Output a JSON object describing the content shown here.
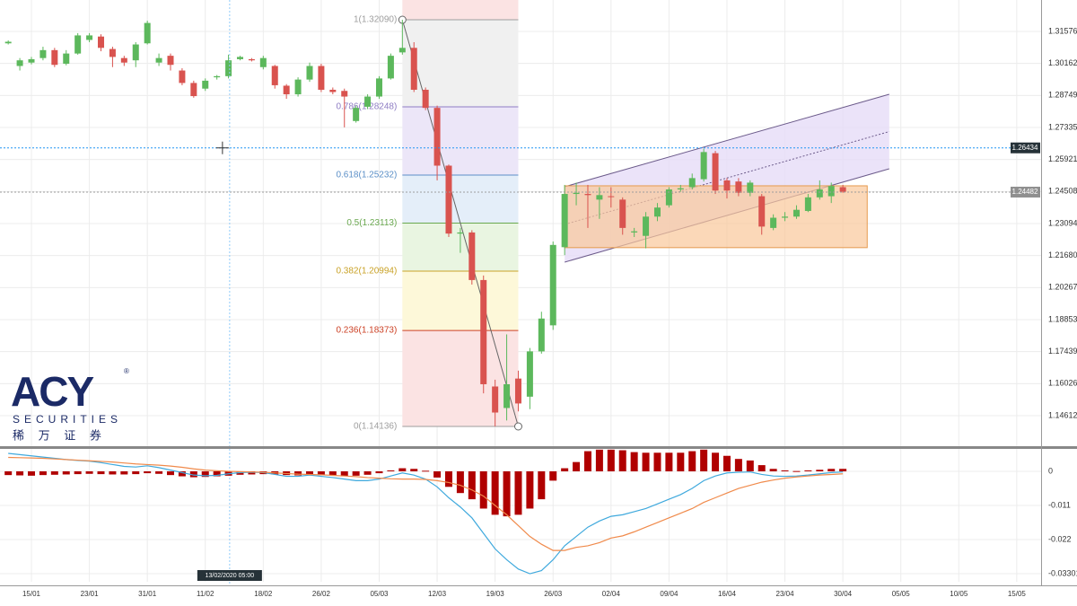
{
  "chart_data": [
    {
      "type": "candlestick",
      "open": [
        1.3105,
        1.3005,
        1.302,
        1.304,
        1.3075,
        1.3015,
        1.306,
        1.312,
        1.3135,
        1.308,
        1.304,
        1.303,
        1.3105,
        1.302,
        1.305,
        1.2985,
        1.293,
        1.2905,
        1.2955,
        1.296,
        1.3035,
        1.3035,
        1.3,
        1.3005,
        1.2918,
        1.288,
        1.2945,
        1.3005,
        1.29,
        1.2895,
        1.2762,
        1.2825,
        1.287,
        1.295,
        1.3065,
        1.3085,
        1.29,
        1.282,
        1.2565,
        1.2265,
        1.227,
        1.206,
        1.159,
        1.1495,
        1.1625,
        1.1545,
        1.1745,
        1.186,
        1.2205,
        1.244,
        1.244,
        1.2415,
        1.243,
        1.2415,
        1.227,
        1.2255,
        1.234,
        1.239,
        1.246,
        1.247,
        1.2505,
        1.262,
        1.25,
        1.2495,
        1.2445,
        1.243,
        1.229,
        1.2335,
        1.234,
        1.2365,
        1.2425,
        1.243,
        1.247
      ],
      "high": [
        1.3118,
        1.304,
        1.3045,
        1.309,
        1.3085,
        1.3075,
        1.315,
        1.315,
        1.3145,
        1.309,
        1.305,
        1.311,
        1.3205,
        1.306,
        1.306,
        1.2995,
        1.294,
        1.295,
        1.2965,
        1.3055,
        1.305,
        1.304,
        1.305,
        1.301,
        1.2925,
        1.2955,
        1.302,
        1.3015,
        1.291,
        1.2905,
        1.283,
        1.288,
        1.296,
        1.306,
        1.3209,
        1.311,
        1.291,
        1.283,
        1.257,
        1.229,
        1.228,
        1.208,
        1.162,
        1.182,
        1.166,
        1.176,
        1.192,
        1.223,
        1.248,
        1.249,
        1.248,
        1.247,
        1.247,
        1.2425,
        1.229,
        1.236,
        1.24,
        1.247,
        1.248,
        1.253,
        1.264,
        1.263,
        1.251,
        1.251,
        1.25,
        1.244,
        1.235,
        1.236,
        1.239,
        1.244,
        1.25,
        1.249,
        1.248
      ],
      "low": [
        1.31,
        1.2985,
        1.3012,
        1.303,
        1.3,
        1.3008,
        1.3055,
        1.311,
        1.307,
        1.3,
        1.3005,
        1.3,
        1.31,
        1.3005,
        1.2985,
        1.292,
        1.2865,
        1.2895,
        1.2945,
        1.295,
        1.303,
        1.3025,
        1.299,
        1.2905,
        1.286,
        1.287,
        1.2935,
        1.289,
        1.288,
        1.2734,
        1.2755,
        1.2815,
        1.286,
        1.2945,
        1.3055,
        1.289,
        1.281,
        1.25,
        1.225,
        1.218,
        1.204,
        1.156,
        1.1414,
        1.144,
        1.148,
        1.149,
        1.1735,
        1.184,
        1.217,
        1.239,
        1.229,
        1.233,
        1.238,
        1.226,
        1.225,
        1.22,
        1.232,
        1.238,
        1.245,
        1.246,
        1.2495,
        1.244,
        1.242,
        1.243,
        1.243,
        1.226,
        1.228,
        1.232,
        1.233,
        1.236,
        1.2415,
        1.24,
        1.2445
      ],
      "close": [
        1.3112,
        1.303,
        1.3035,
        1.3075,
        1.301,
        1.306,
        1.314,
        1.314,
        1.3085,
        1.3045,
        1.302,
        1.31,
        1.3195,
        1.304,
        1.301,
        1.293,
        1.2872,
        1.294,
        1.296,
        1.303,
        1.3045,
        1.303,
        1.304,
        1.292,
        1.288,
        1.2945,
        1.3005,
        1.29,
        1.289,
        1.287,
        1.282,
        1.287,
        1.295,
        1.305,
        1.3085,
        1.29,
        1.282,
        1.2565,
        1.2265,
        1.227,
        1.206,
        1.16,
        1.1475,
        1.16,
        1.1515,
        1.1745,
        1.189,
        1.2215,
        1.244,
        1.2445,
        1.2435,
        1.2435,
        1.2428,
        1.229,
        1.2275,
        1.234,
        1.238,
        1.246,
        1.2465,
        1.251,
        1.2625,
        1.2455,
        1.2455,
        1.2445,
        1.249,
        1.2296,
        1.2335,
        1.234,
        1.237,
        1.2425,
        1.246,
        1.2475,
        1.245
      ],
      "up_color": "#5cb85c",
      "down_color": "#d9534f",
      "xlim": [
        -0.71,
        89.1
      ],
      "ylim": [
        1.13264,
        1.32963
      ],
      "yticks": [
        1.31576,
        1.30162,
        1.28749,
        1.27335,
        1.25921,
        1.24508,
        1.23094,
        {
          "value": 1.2168,
          "label": "1.21680"
        },
        1.20267,
        1.18853,
        1.17439,
        1.16026,
        1.14612
      ],
      "grid": true,
      "fibonacci": {
        "x": [
          34,
          44
        ],
        "top_fill": "#fbe3e3",
        "levels": [
          {
            "value": 1.3209,
            "label": "1(1.32090)",
            "color": "#9e9e9e",
            "fill": "#f0f0f0"
          },
          {
            "value": 1.28248,
            "label": "0.786(1.28248)",
            "color": "#8e7cc3",
            "fill": "#ece6f8"
          },
          {
            "value": 1.25232,
            "label": "0.618(1.25232)",
            "color": "#5b8fc7",
            "fill": "#e4eef9"
          },
          {
            "value": 1.23113,
            "label": "0.5(1.23113)",
            "color": "#6aa84f",
            "fill": "#e9f5e1"
          },
          {
            "value": 1.20994,
            "label": "0.382(1.20994)",
            "color": "#c9a227",
            "fill": "#fdf8d9"
          },
          {
            "value": 1.18373,
            "label": "0.236(1.18373)",
            "color": "#cc4125",
            "fill": "#fbe3e3"
          },
          {
            "value": 1.14136,
            "label": "0(1.14136)",
            "color": "#9e9e9e",
            "fill": "#fbe3e3"
          }
        ]
      },
      "channel": {
        "x": [
          48,
          76
        ],
        "lower": [
          1.2139,
          1.2551
        ],
        "upper": [
          1.2472,
          1.288
        ],
        "fill": "#e6dcf7",
        "color": "#6b5a8a"
      },
      "rectangle": {
        "x": [
          48,
          74.1
        ],
        "y": [
          1.2203,
          1.2476
        ],
        "fill": "#f9c89a",
        "color": "#e59a4e"
      },
      "price_lines": [
        {
          "value": 1.26434,
          "color": "#2196f3",
          "box": "#263238"
        },
        {
          "value": 1.24482,
          "color": "#9e9e9e",
          "box": "#8f8f8f"
        }
      ],
      "crosshair": {
        "x": 19.1,
        "y": 1.26434,
        "label": "13/02/2020  05:00"
      },
      "logo": {
        "name": "ACY",
        "mark": "®",
        "tagline": "SECURITIES",
        "chinese": "稀 万 证 券"
      }
    },
    {
      "type": "macd",
      "histogram": [
        -0.0012,
        -0.0013,
        -0.0014,
        -0.0012,
        -0.0011,
        -0.001,
        -0.0009,
        -0.0008,
        -0.0009,
        -0.001,
        -0.001,
        -0.0009,
        -0.0006,
        -0.0008,
        -0.0012,
        -0.0016,
        -0.0019,
        -0.0018,
        -0.0016,
        -0.0014,
        -0.0011,
        -0.001,
        -0.0009,
        -0.001,
        -0.0012,
        -0.0013,
        -0.0011,
        -0.0012,
        -0.0013,
        -0.0015,
        -0.0014,
        -0.0011,
        -0.0006,
        0.0003,
        0.001,
        0.0008,
        0.0002,
        -0.002,
        -0.005,
        -0.007,
        -0.009,
        -0.012,
        -0.014,
        -0.0145,
        -0.014,
        -0.012,
        -0.009,
        -0.003,
        0.001,
        0.003,
        0.0065,
        0.007,
        0.007,
        0.0068,
        0.0062,
        0.006,
        0.006,
        0.006,
        0.006,
        0.0065,
        0.007,
        0.006,
        0.005,
        0.004,
        0.0035,
        0.002,
        0.0008,
        0.0003,
        0.0001,
        0.0003,
        0.0005,
        0.0008,
        0.0008
      ],
      "histogram_color": "#b00000",
      "macd": [
        0.0058,
        0.0054,
        0.005,
        0.0046,
        0.0042,
        0.0038,
        0.0035,
        0.0033,
        0.0028,
        0.0022,
        0.0016,
        0.0014,
        0.0018,
        0.0012,
        0.0004,
        -0.0004,
        -0.0012,
        -0.0014,
        -0.0013,
        -0.0008,
        -0.0004,
        -0.0003,
        -0.0004,
        -0.001,
        -0.0016,
        -0.0016,
        -0.0012,
        -0.0016,
        -0.002,
        -0.0025,
        -0.003,
        -0.003,
        -0.0025,
        -0.0015,
        -0.0005,
        -0.0012,
        -0.0025,
        -0.005,
        -0.0085,
        -0.0115,
        -0.015,
        -0.02,
        -0.025,
        -0.0285,
        -0.0315,
        -0.033,
        -0.032,
        -0.0285,
        -0.024,
        -0.021,
        -0.018,
        -0.016,
        -0.0145,
        -0.014,
        -0.013,
        -0.012,
        -0.0105,
        -0.009,
        -0.0075,
        -0.0055,
        -0.003,
        -0.0015,
        -0.0005,
        -0.0003,
        -0.0002,
        -0.001,
        -0.0015,
        -0.0016,
        -0.0015,
        -0.0012,
        -0.0008,
        -0.0004,
        -0.0002
      ],
      "macd_color": "#3fa9dd",
      "signal": [
        0.0045,
        0.0044,
        0.0043,
        0.0042,
        0.004,
        0.0038,
        0.0036,
        0.0034,
        0.0032,
        0.003,
        0.0027,
        0.0024,
        0.0022,
        0.002,
        0.0017,
        0.0013,
        0.0008,
        0.0004,
        0.0002,
        0.0,
        -0.0001,
        -0.0002,
        -0.0003,
        -0.0005,
        -0.0007,
        -0.0009,
        -0.001,
        -0.0011,
        -0.0013,
        -0.0015,
        -0.0017,
        -0.002,
        -0.0022,
        -0.0024,
        -0.0025,
        -0.0025,
        -0.0026,
        -0.003,
        -0.0036,
        -0.0045,
        -0.006,
        -0.008,
        -0.011,
        -0.014,
        -0.0175,
        -0.021,
        -0.0235,
        -0.0255,
        -0.0255,
        -0.0245,
        -0.024,
        -0.023,
        -0.0215,
        -0.0208,
        -0.0195,
        -0.018,
        -0.0165,
        -0.015,
        -0.0135,
        -0.012,
        -0.01,
        -0.0085,
        -0.007,
        -0.0055,
        -0.0045,
        -0.0035,
        -0.0028,
        -0.0022,
        -0.0018,
        -0.0015,
        -0.0012,
        -0.001,
        -0.0008
      ],
      "signal_color": "#f08a4b",
      "xlim": [
        -0.71,
        89.1
      ],
      "ylim": [
        -0.0356,
        0.00724
      ],
      "yticks": [
        0,
        -0.011,
        -0.022,
        -0.03301
      ],
      "grid": true,
      "xticks": [
        {
          "value": 2,
          "label": "15/01"
        },
        {
          "value": 7,
          "label": "23/01"
        },
        {
          "value": 12,
          "label": "31/01"
        },
        {
          "value": 17,
          "label": "11/02"
        },
        {
          "value": 22,
          "label": "18/02"
        },
        {
          "value": 27,
          "label": "26/02"
        },
        {
          "value": 32,
          "label": "05/03"
        },
        {
          "value": 37,
          "label": "12/03"
        },
        {
          "value": 42,
          "label": "19/03"
        },
        {
          "value": 47,
          "label": "26/03"
        },
        {
          "value": 52,
          "label": "02/04"
        },
        {
          "value": 57,
          "label": "09/04"
        },
        {
          "value": 62,
          "label": "16/04"
        },
        {
          "value": 67,
          "label": "23/04"
        },
        {
          "value": 72,
          "label": "30/04"
        },
        {
          "value": 77,
          "label": "05/05"
        },
        {
          "value": 82,
          "label": "10/05"
        },
        {
          "value": 87,
          "label": "15/05"
        }
      ]
    }
  ]
}
